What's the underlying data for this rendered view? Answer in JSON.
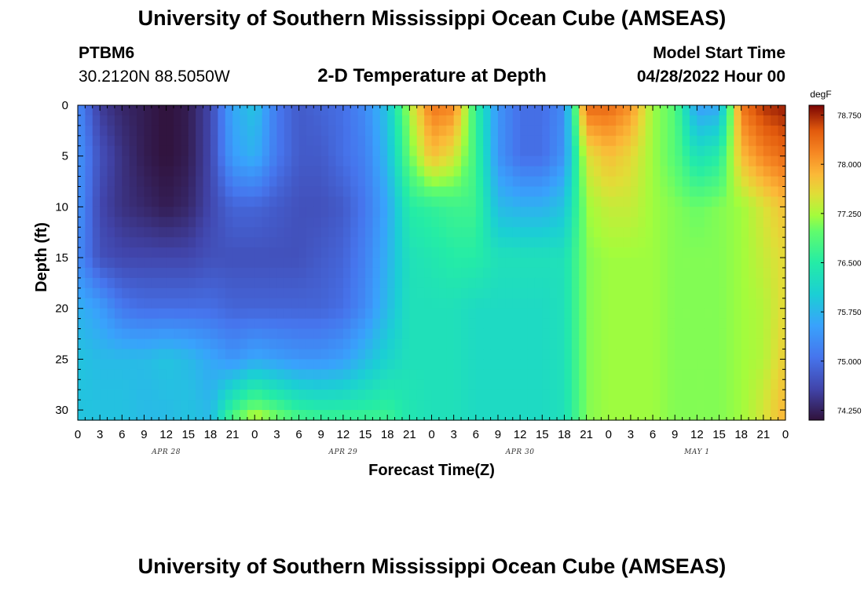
{
  "header": {
    "title": "University of Southern Mississippi Ocean Cube (AMSEAS)",
    "station_id": "PTBM6",
    "coordinates": "30.2120N  88.5050W",
    "plot_title": "2-D Temperature at Depth",
    "start_label": "Model Start Time",
    "start_value": "04/28/2022 Hour 00"
  },
  "footer": {
    "title": "University of Southern Mississippi Ocean Cube (AMSEAS)"
  },
  "chart_data": {
    "type": "heatmap",
    "xlabel": "Forecast Time(Z)",
    "ylabel": "Depth (ft)",
    "x_tick_labels": [
      "0",
      "3",
      "6",
      "9",
      "12",
      "15",
      "18",
      "21",
      "0",
      "3",
      "6",
      "9",
      "12",
      "15",
      "18",
      "21",
      "0",
      "3",
      "6",
      "9",
      "12",
      "15",
      "18",
      "21",
      "0",
      "3",
      "6",
      "9",
      "12",
      "15",
      "18",
      "21",
      "0"
    ],
    "x_range_hours": [
      0,
      96
    ],
    "date_labels": [
      {
        "label": "APR 28",
        "hour": 12
      },
      {
        "label": "APR 29",
        "hour": 36
      },
      {
        "label": "APR 30",
        "hour": 60
      },
      {
        "label": "MAY 1",
        "hour": 84
      }
    ],
    "y_ticks": [
      0,
      5,
      10,
      15,
      20,
      25,
      30
    ],
    "y_range_ft": [
      0,
      31
    ],
    "y_reversed": true,
    "colorbar": {
      "unit": "degF",
      "ticks": [
        "78.750",
        "78.000",
        "77.250",
        "76.500",
        "75.750",
        "75.000",
        "74.250"
      ],
      "tick_values": [
        78.75,
        78.0,
        77.25,
        76.5,
        75.75,
        75.0,
        74.25
      ],
      "range": [
        74.1,
        78.9
      ],
      "colormap": "turbo"
    },
    "grid_hours": [
      0,
      3,
      6,
      9,
      12,
      15,
      18,
      21,
      24,
      27,
      30,
      33,
      36,
      39,
      42,
      45,
      48,
      51,
      54,
      57,
      60,
      63,
      66,
      69,
      72,
      75,
      78,
      81,
      84,
      87,
      90,
      93,
      96
    ],
    "grid_depths_ft": [
      0,
      5,
      10,
      15,
      20,
      25,
      31
    ],
    "temperature_degF": [
      [
        75.3,
        74.5,
        74.3,
        74.2,
        74.1,
        74.2,
        74.6,
        75.6,
        75.9,
        75.1,
        74.8,
        74.9,
        75.0,
        75.3,
        75.9,
        77.3,
        78.3,
        78.2,
        76.6,
        75.4,
        75.0,
        75.0,
        75.3,
        78.4,
        78.4,
        78.1,
        77.2,
        76.9,
        75.5,
        75.6,
        78.3,
        78.7,
        78.8
      ],
      [
        75.4,
        74.7,
        74.4,
        74.2,
        74.1,
        74.2,
        74.6,
        75.5,
        75.7,
        75.1,
        74.8,
        74.8,
        75.0,
        75.2,
        75.8,
        77.0,
        77.8,
        77.5,
        76.7,
        75.4,
        75.0,
        75.0,
        75.4,
        77.5,
        77.8,
        77.6,
        77.2,
        76.9,
        76.3,
        76.5,
        77.8,
        78.2,
        78.4
      ],
      [
        75.4,
        74.6,
        74.4,
        74.3,
        74.2,
        74.3,
        74.6,
        74.9,
        74.9,
        74.8,
        74.7,
        74.7,
        74.8,
        75.1,
        75.6,
        76.5,
        76.6,
        76.7,
        76.7,
        75.8,
        75.7,
        75.7,
        75.9,
        77.2,
        77.4,
        77.4,
        77.2,
        77.1,
        77.0,
        77.1,
        77.2,
        77.5,
        77.8
      ],
      [
        75.3,
        74.7,
        74.6,
        74.6,
        74.6,
        74.6,
        74.7,
        74.7,
        74.7,
        74.7,
        74.7,
        74.8,
        74.9,
        75.2,
        75.7,
        76.3,
        76.4,
        76.5,
        76.5,
        76.3,
        76.3,
        76.3,
        76.3,
        77.1,
        77.2,
        77.2,
        77.2,
        77.1,
        77.1,
        77.1,
        77.2,
        77.4,
        77.6
      ],
      [
        75.7,
        75.5,
        75.1,
        75.0,
        75.0,
        75.0,
        75.0,
        74.9,
        74.9,
        74.9,
        74.9,
        74.9,
        75.0,
        75.3,
        75.8,
        76.3,
        76.3,
        76.3,
        76.2,
        76.2,
        76.2,
        76.2,
        76.3,
        77.1,
        77.2,
        77.2,
        77.2,
        77.1,
        77.1,
        77.1,
        77.2,
        77.3,
        77.6
      ],
      [
        75.9,
        75.8,
        75.8,
        75.8,
        75.9,
        75.8,
        75.6,
        75.4,
        75.6,
        75.5,
        75.4,
        75.4,
        75.5,
        75.8,
        76.1,
        76.3,
        76.3,
        76.3,
        76.2,
        76.2,
        76.2,
        76.2,
        76.3,
        77.1,
        77.2,
        77.2,
        77.2,
        77.1,
        77.1,
        77.1,
        77.2,
        77.3,
        77.7
      ],
      [
        75.9,
        75.9,
        75.9,
        75.8,
        75.8,
        75.9,
        75.8,
        76.9,
        77.4,
        77.1,
        76.8,
        76.7,
        76.7,
        76.7,
        76.7,
        76.4,
        76.3,
        76.3,
        76.2,
        76.2,
        76.2,
        76.2,
        76.3,
        77.1,
        77.2,
        77.2,
        77.2,
        77.1,
        77.1,
        77.1,
        77.2,
        77.5,
        77.9
      ]
    ]
  }
}
